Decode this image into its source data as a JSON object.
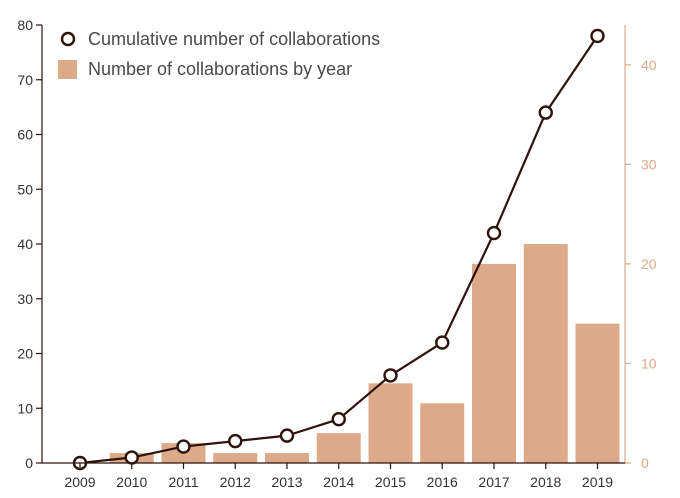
{
  "chart_data": {
    "type": "bar+line",
    "categories": [
      "2009",
      "2010",
      "2011",
      "2012",
      "2013",
      "2014",
      "2015",
      "2016",
      "2017",
      "2018",
      "2019"
    ],
    "series": [
      {
        "name": "Number of collaborations by year",
        "kind": "bar",
        "axis": "right",
        "values": [
          0,
          1,
          2,
          1,
          1,
          3,
          8,
          6,
          20,
          22,
          14
        ]
      },
      {
        "name": "Cumulative number of collaborations",
        "kind": "line",
        "axis": "left",
        "values": [
          0,
          1,
          3,
          4,
          5,
          8,
          16,
          22,
          42,
          64,
          78
        ]
      }
    ],
    "y_left": {
      "lim": [
        0,
        80
      ],
      "ticks": [
        "0",
        "10",
        "20",
        "30",
        "40",
        "50",
        "60",
        "70",
        "80"
      ]
    },
    "y_right": {
      "lim": [
        0,
        44
      ],
      "ticks": [
        "0",
        "10",
        "20",
        "30",
        "40"
      ]
    },
    "legend_position": "top-left",
    "grid": false
  },
  "colors": {
    "bar": "#dcaa88",
    "line": "#2e120c",
    "marker_fill": "#ffffff",
    "left_axis": "#2e120c",
    "right_axis": "#dcaa88",
    "left_text": "#333333",
    "right_text": "#dcaa88"
  }
}
